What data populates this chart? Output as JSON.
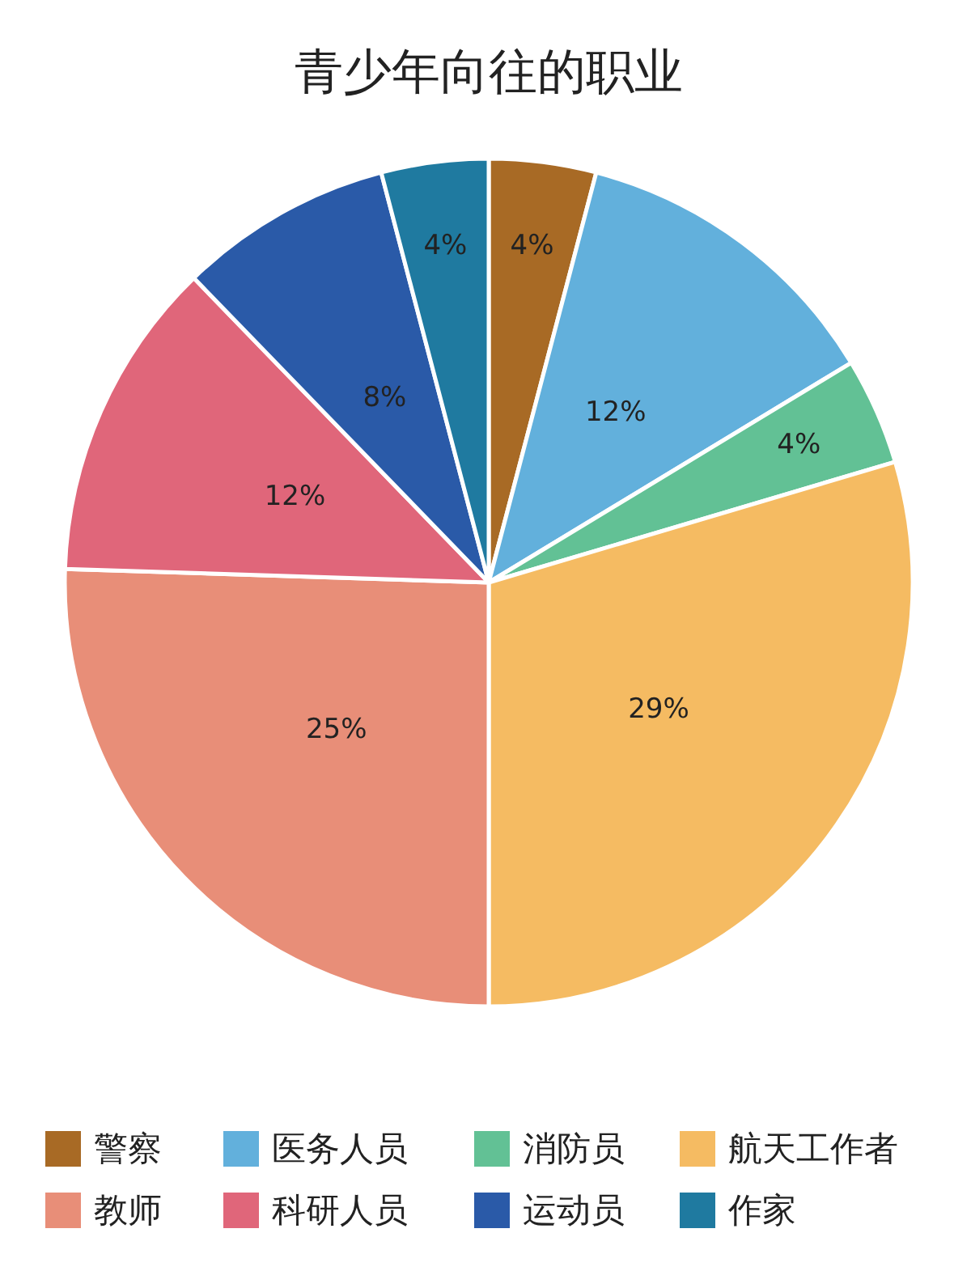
{
  "chart_data": {
    "type": "pie",
    "title": "青少年向往的职业",
    "categories": [
      "警察",
      "医务人员",
      "消防员",
      "航天工作者",
      "教师",
      "科研人员",
      "运动员",
      "作家"
    ],
    "values": [
      4,
      12,
      4,
      29,
      25,
      12,
      8,
      4
    ],
    "colors": [
      "#a86a25",
      "#62b0dc",
      "#62c195",
      "#f5bb62",
      "#e88e78",
      "#e0667a",
      "#2a5aa8",
      "#1f7aa0"
    ],
    "value_labels": [
      "4%",
      "12%",
      "4%",
      "29%",
      "25%",
      "12%",
      "8%",
      "4%"
    ],
    "legend": "bottom"
  }
}
